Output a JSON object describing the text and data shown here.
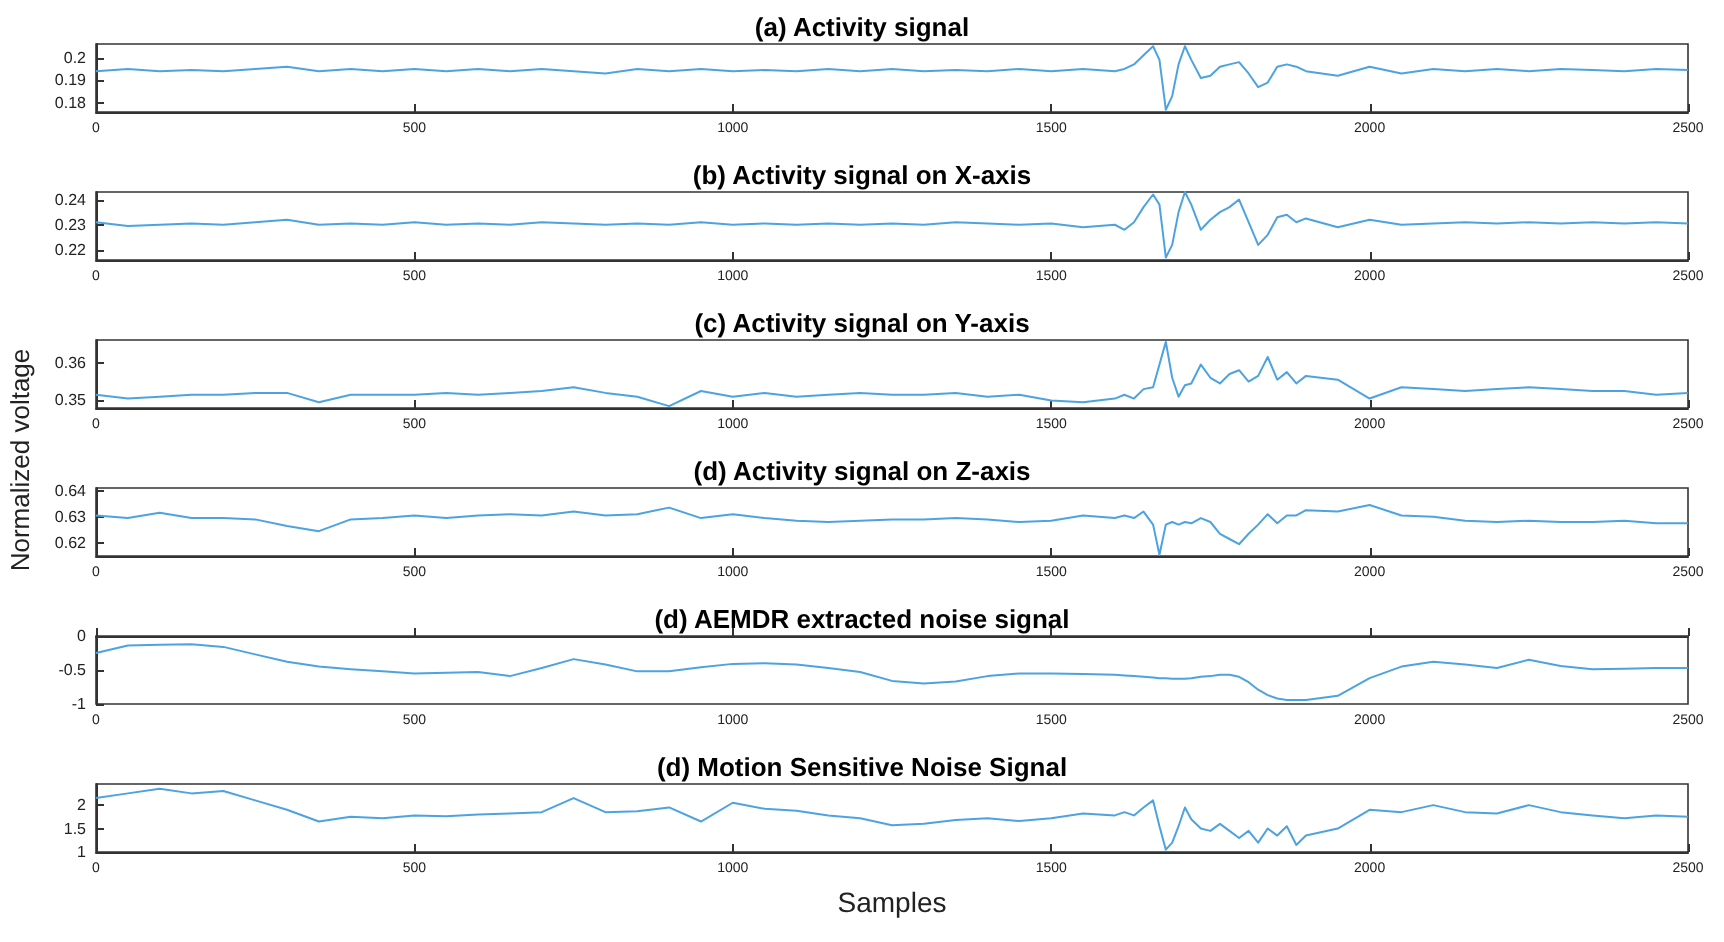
{
  "chart_data": [
    {
      "type": "line",
      "title": "(a) Activity signal",
      "x": [
        0,
        50,
        100,
        150,
        200,
        250,
        300,
        350,
        400,
        450,
        500,
        550,
        600,
        650,
        700,
        750,
        800,
        850,
        900,
        950,
        1000,
        1050,
        1100,
        1150,
        1200,
        1250,
        1300,
        1350,
        1400,
        1450,
        1500,
        1550,
        1600,
        1615,
        1630,
        1645,
        1660,
        1670,
        1680,
        1690,
        1700,
        1710,
        1720,
        1735,
        1750,
        1765,
        1780,
        1795,
        1810,
        1825,
        1840,
        1855,
        1870,
        1885,
        1900,
        1950,
        2000,
        2050,
        2100,
        2150,
        2200,
        2250,
        2300,
        2350,
        2400,
        2450,
        2500
      ],
      "xlim": [
        0,
        2500
      ],
      "xticks": [
        0,
        500,
        1000,
        1500,
        2000,
        2500
      ],
      "ylim": [
        0.176,
        0.206
      ],
      "yticks": [
        0.18,
        0.19,
        0.2
      ],
      "series": [
        {
          "color": "#4da3df",
          "values": [
            0.194,
            0.195,
            0.194,
            0.1945,
            0.194,
            0.195,
            0.196,
            0.194,
            0.195,
            0.194,
            0.195,
            0.194,
            0.195,
            0.194,
            0.195,
            0.194,
            0.193,
            0.195,
            0.194,
            0.195,
            0.194,
            0.1945,
            0.194,
            0.195,
            0.194,
            0.195,
            0.194,
            0.1945,
            0.194,
            0.195,
            0.194,
            0.195,
            0.194,
            0.195,
            0.197,
            0.201,
            0.205,
            0.199,
            0.177,
            0.183,
            0.197,
            0.205,
            0.199,
            0.191,
            0.192,
            0.196,
            0.197,
            0.198,
            0.193,
            0.187,
            0.189,
            0.196,
            0.197,
            0.196,
            0.194,
            0.192,
            0.196,
            0.193,
            0.195,
            0.194,
            0.195,
            0.194,
            0.195,
            0.1945,
            0.194,
            0.195,
            0.1945
          ]
        }
      ]
    },
    {
      "type": "line",
      "title": "(b) Activity signal on X-axis",
      "x": [
        0,
        50,
        100,
        150,
        200,
        250,
        300,
        350,
        400,
        450,
        500,
        550,
        600,
        650,
        700,
        750,
        800,
        850,
        900,
        950,
        1000,
        1050,
        1100,
        1150,
        1200,
        1250,
        1300,
        1350,
        1400,
        1450,
        1500,
        1550,
        1600,
        1615,
        1630,
        1645,
        1660,
        1670,
        1680,
        1690,
        1700,
        1710,
        1720,
        1735,
        1750,
        1765,
        1780,
        1795,
        1810,
        1825,
        1840,
        1855,
        1870,
        1885,
        1900,
        1950,
        2000,
        2050,
        2100,
        2150,
        2200,
        2250,
        2300,
        2350,
        2400,
        2450,
        2500
      ],
      "xlim": [
        0,
        2500
      ],
      "xticks": [
        0,
        500,
        1000,
        1500,
        2000,
        2500
      ],
      "ylim": [
        0.216,
        0.243
      ],
      "yticks": [
        0.22,
        0.23,
        0.24
      ],
      "series": [
        {
          "color": "#4da3df",
          "values": [
            0.231,
            0.2295,
            0.23,
            0.2305,
            0.23,
            0.231,
            0.232,
            0.23,
            0.2305,
            0.23,
            0.231,
            0.23,
            0.2305,
            0.23,
            0.231,
            0.2305,
            0.23,
            0.2305,
            0.23,
            0.231,
            0.23,
            0.2305,
            0.23,
            0.2305,
            0.23,
            0.2305,
            0.23,
            0.231,
            0.2305,
            0.23,
            0.2305,
            0.229,
            0.23,
            0.228,
            0.231,
            0.237,
            0.242,
            0.238,
            0.217,
            0.222,
            0.235,
            0.243,
            0.238,
            0.228,
            0.232,
            0.235,
            0.237,
            0.24,
            0.231,
            0.222,
            0.226,
            0.233,
            0.234,
            0.231,
            0.2325,
            0.229,
            0.232,
            0.23,
            0.2305,
            0.231,
            0.2305,
            0.231,
            0.2305,
            0.231,
            0.2305,
            0.231,
            0.2305
          ]
        }
      ]
    },
    {
      "type": "line",
      "title": "(c) Activity signal on Y-axis",
      "ylabel": "Normalized voltage",
      "x": [
        0,
        50,
        100,
        150,
        200,
        250,
        300,
        350,
        400,
        450,
        500,
        550,
        600,
        650,
        700,
        750,
        800,
        850,
        900,
        950,
        1000,
        1050,
        1100,
        1150,
        1200,
        1250,
        1300,
        1350,
        1400,
        1450,
        1500,
        1550,
        1600,
        1615,
        1630,
        1645,
        1660,
        1670,
        1680,
        1690,
        1700,
        1710,
        1720,
        1735,
        1750,
        1765,
        1780,
        1795,
        1810,
        1825,
        1840,
        1855,
        1870,
        1885,
        1900,
        1950,
        2000,
        2050,
        2100,
        2150,
        2200,
        2250,
        2300,
        2350,
        2400,
        2450,
        2500
      ],
      "xlim": [
        0,
        2500
      ],
      "xticks": [
        0,
        500,
        1000,
        1500,
        2000,
        2500
      ],
      "ylim": [
        0.348,
        0.366
      ],
      "yticks": [
        0.35,
        0.36
      ],
      "series": [
        {
          "color": "#4da3df",
          "values": [
            0.3515,
            0.3505,
            0.351,
            0.3515,
            0.3515,
            0.352,
            0.352,
            0.3495,
            0.3515,
            0.3515,
            0.3515,
            0.352,
            0.3515,
            0.352,
            0.3525,
            0.3535,
            0.352,
            0.351,
            0.3485,
            0.3525,
            0.351,
            0.352,
            0.351,
            0.3515,
            0.352,
            0.3515,
            0.3515,
            0.352,
            0.351,
            0.3515,
            0.35,
            0.3495,
            0.3505,
            0.3515,
            0.3505,
            0.353,
            0.3535,
            0.3595,
            0.3655,
            0.356,
            0.351,
            0.354,
            0.3545,
            0.3595,
            0.356,
            0.3545,
            0.357,
            0.358,
            0.355,
            0.3565,
            0.3615,
            0.3555,
            0.3575,
            0.3545,
            0.3565,
            0.3555,
            0.3505,
            0.3535,
            0.353,
            0.3525,
            0.353,
            0.3535,
            0.353,
            0.3525,
            0.3525,
            0.3515,
            0.352
          ]
        }
      ]
    },
    {
      "type": "line",
      "title": "(d) Activity signal on Z-axis",
      "x": [
        0,
        50,
        100,
        150,
        200,
        250,
        300,
        350,
        400,
        450,
        500,
        550,
        600,
        650,
        700,
        750,
        800,
        850,
        900,
        950,
        1000,
        1050,
        1100,
        1150,
        1200,
        1250,
        1300,
        1350,
        1400,
        1450,
        1500,
        1550,
        1600,
        1615,
        1630,
        1645,
        1660,
        1670,
        1680,
        1690,
        1700,
        1710,
        1720,
        1735,
        1750,
        1765,
        1780,
        1795,
        1810,
        1825,
        1840,
        1855,
        1870,
        1885,
        1900,
        1950,
        2000,
        2050,
        2100,
        2150,
        2200,
        2250,
        2300,
        2350,
        2400,
        2450,
        2500
      ],
      "xlim": [
        0,
        2500
      ],
      "xticks": [
        0,
        500,
        1000,
        1500,
        2000,
        2500
      ],
      "ylim": [
        0.615,
        0.641
      ],
      "yticks": [
        0.62,
        0.63,
        0.64
      ],
      "series": [
        {
          "color": "#4da3df",
          "values": [
            0.6305,
            0.6295,
            0.6315,
            0.6295,
            0.6295,
            0.629,
            0.6265,
            0.6245,
            0.629,
            0.6295,
            0.6305,
            0.6295,
            0.6305,
            0.631,
            0.6305,
            0.632,
            0.6305,
            0.631,
            0.6335,
            0.6295,
            0.631,
            0.6295,
            0.6285,
            0.628,
            0.6285,
            0.629,
            0.629,
            0.6295,
            0.629,
            0.628,
            0.6285,
            0.6305,
            0.6295,
            0.6305,
            0.6295,
            0.632,
            0.627,
            0.6155,
            0.627,
            0.628,
            0.627,
            0.628,
            0.6275,
            0.6295,
            0.628,
            0.6235,
            0.6215,
            0.6195,
            0.6235,
            0.627,
            0.631,
            0.6275,
            0.6305,
            0.6305,
            0.6325,
            0.632,
            0.6345,
            0.6305,
            0.63,
            0.6285,
            0.628,
            0.6285,
            0.628,
            0.628,
            0.6285,
            0.6275,
            0.6275
          ]
        }
      ]
    },
    {
      "type": "line",
      "title": "(d) AEMDR extracted noise signal",
      "x": [
        0,
        50,
        100,
        150,
        200,
        250,
        300,
        350,
        400,
        450,
        500,
        550,
        600,
        650,
        700,
        750,
        800,
        850,
        900,
        950,
        1000,
        1050,
        1100,
        1150,
        1200,
        1250,
        1300,
        1350,
        1400,
        1450,
        1500,
        1550,
        1600,
        1615,
        1630,
        1645,
        1660,
        1670,
        1680,
        1690,
        1700,
        1710,
        1720,
        1735,
        1750,
        1765,
        1780,
        1795,
        1810,
        1825,
        1840,
        1855,
        1870,
        1885,
        1900,
        1950,
        2000,
        2050,
        2100,
        2150,
        2200,
        2250,
        2300,
        2350,
        2400,
        2450,
        2500
      ],
      "xlim": [
        0,
        2500
      ],
      "xticks": [
        0,
        500,
        1000,
        1500,
        2000,
        2500
      ],
      "ylim": [
        -1,
        0
      ],
      "yticks": [
        -1,
        -0.5,
        0
      ],
      "series": [
        {
          "color": "#4da3df",
          "values": [
            -0.25,
            -0.14,
            -0.13,
            -0.12,
            -0.16,
            -0.27,
            -0.38,
            -0.45,
            -0.49,
            -0.52,
            -0.55,
            -0.54,
            -0.53,
            -0.59,
            -0.47,
            -0.34,
            -0.42,
            -0.52,
            -0.52,
            -0.46,
            -0.41,
            -0.4,
            -0.42,
            -0.47,
            -0.53,
            -0.66,
            -0.7,
            -0.67,
            -0.59,
            -0.55,
            -0.55,
            -0.56,
            -0.57,
            -0.58,
            -0.59,
            -0.6,
            -0.61,
            -0.62,
            -0.62,
            -0.63,
            -0.63,
            -0.63,
            -0.62,
            -0.6,
            -0.59,
            -0.57,
            -0.57,
            -0.6,
            -0.68,
            -0.79,
            -0.87,
            -0.92,
            -0.94,
            -0.94,
            -0.94,
            -0.88,
            -0.62,
            -0.45,
            -0.38,
            -0.42,
            -0.47,
            -0.35,
            -0.44,
            -0.49,
            -0.48,
            -0.47,
            -0.47
          ]
        }
      ]
    },
    {
      "type": "line",
      "title": "(d) Motion Sensitive Noise Signal",
      "xlabel": "Samples",
      "x": [
        0,
        50,
        100,
        150,
        200,
        250,
        300,
        350,
        400,
        450,
        500,
        550,
        600,
        650,
        700,
        750,
        800,
        850,
        900,
        950,
        1000,
        1050,
        1100,
        1150,
        1200,
        1250,
        1300,
        1350,
        1400,
        1450,
        1500,
        1550,
        1600,
        1615,
        1630,
        1645,
        1660,
        1670,
        1680,
        1690,
        1700,
        1710,
        1720,
        1735,
        1750,
        1765,
        1780,
        1795,
        1810,
        1825,
        1840,
        1855,
        1870,
        1885,
        1900,
        1950,
        2000,
        2050,
        2100,
        2150,
        2200,
        2250,
        2300,
        2350,
        2400,
        2450,
        2500
      ],
      "xlim": [
        0,
        2500
      ],
      "xticks": [
        0,
        500,
        1000,
        1500,
        2000,
        2500
      ],
      "ylim": [
        1,
        2.45
      ],
      "yticks": [
        1,
        1.5,
        2
      ],
      "series": [
        {
          "color": "#4da3df",
          "values": [
            2.15,
            2.25,
            2.35,
            2.25,
            2.3,
            2.1,
            1.9,
            1.65,
            1.75,
            1.72,
            1.78,
            1.76,
            1.8,
            1.82,
            1.85,
            2.15,
            1.85,
            1.87,
            1.95,
            1.65,
            2.05,
            1.92,
            1.88,
            1.78,
            1.72,
            1.57,
            1.6,
            1.68,
            1.72,
            1.66,
            1.72,
            1.82,
            1.78,
            1.85,
            1.78,
            1.95,
            2.1,
            1.55,
            1.05,
            1.2,
            1.55,
            1.95,
            1.7,
            1.5,
            1.45,
            1.6,
            1.45,
            1.3,
            1.45,
            1.2,
            1.5,
            1.35,
            1.55,
            1.15,
            1.35,
            1.5,
            1.9,
            1.85,
            2.0,
            1.85,
            1.82,
            2.0,
            1.85,
            1.78,
            1.72,
            1.78,
            1.75
          ]
        }
      ]
    }
  ]
}
